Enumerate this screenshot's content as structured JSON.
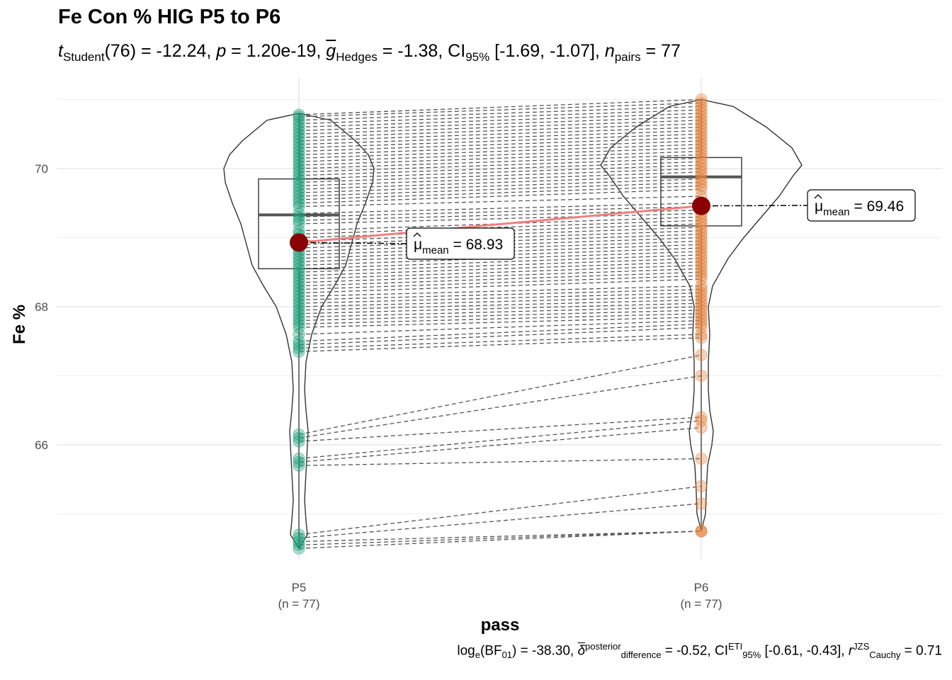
{
  "chart_data": {
    "type": "paired violin-box-scatter",
    "title": "Fe Con % HIG P5 to P6",
    "subtitle": {
      "t_label": "t",
      "t_sub": "Student",
      "df": "(76)",
      "t_value": " = -12.24, ",
      "p_label": "p",
      "p_value": " = 1.20e-19, ",
      "g_label": "g",
      "g_sub": "Hedges",
      "g_value": " = -1.38, CI",
      "ci_sub": "95%",
      "ci_value": " [-1.69, -1.07], ",
      "n_label": "n",
      "n_sub": "pairs",
      "n_value": " = 77"
    },
    "caption": {
      "log_label": "log",
      "log_sub": "e",
      "bf_open": "(BF",
      "bf_sub": "01",
      "bf_value": ") = -38.30, ",
      "delta_label": "δ",
      "delta_sup": "posterior",
      "delta_sub": "difference",
      "delta_value": " = -0.52, CI",
      "ci_sup": "ETI",
      "ci_sub": "95%",
      "ci_value": " [-0.61, -0.43], ",
      "r_label": "r",
      "r_sup": "JZS",
      "r_sub": "Cauchy",
      "r_value": " = 0.71"
    },
    "xlabel": "pass",
    "ylabel": "Fe %",
    "ylim": [
      64.3,
      71.2
    ],
    "y_ticks": [
      "66",
      "68",
      "70"
    ],
    "grid": true,
    "groups": [
      {
        "name": "P5",
        "n_label": "(n = 77)",
        "color": "#1b9e77",
        "mean": 68.93,
        "mean_label": "68.93",
        "box": {
          "q1": 68.55,
          "median": 69.33,
          "q3": 69.85,
          "whisker_low": 64.5,
          "whisker_high": 70.8
        }
      },
      {
        "name": "P6",
        "n_label": "(n = 77)",
        "color": "#e6813d",
        "mean": 69.46,
        "mean_label": "69.46",
        "box": {
          "q1": 69.17,
          "median": 69.88,
          "q3": 70.16,
          "whisker_low": 64.75,
          "whisker_high": 71.0
        }
      }
    ],
    "mean_label_prefix": "μ",
    "mean_label_sub": "mean",
    "mean_color": "#8b0000",
    "mean_line_color": "#f08080",
    "pairs": [
      [
        70.78,
        71.0
      ],
      [
        70.75,
        70.95
      ],
      [
        70.7,
        70.9
      ],
      [
        70.65,
        70.85
      ],
      [
        70.6,
        70.8
      ],
      [
        70.55,
        70.75
      ],
      [
        70.5,
        70.7
      ],
      [
        70.45,
        70.65
      ],
      [
        70.4,
        70.6
      ],
      [
        70.35,
        70.55
      ],
      [
        70.3,
        70.5
      ],
      [
        70.25,
        70.45
      ],
      [
        70.2,
        70.4
      ],
      [
        70.15,
        70.35
      ],
      [
        70.1,
        70.3
      ],
      [
        70.05,
        70.25
      ],
      [
        70.0,
        70.2
      ],
      [
        69.95,
        70.15
      ],
      [
        69.9,
        70.1
      ],
      [
        69.85,
        70.05
      ],
      [
        69.8,
        70.0
      ],
      [
        69.75,
        69.95
      ],
      [
        69.7,
        69.9
      ],
      [
        69.65,
        69.85
      ],
      [
        69.6,
        69.8
      ],
      [
        69.55,
        69.75
      ],
      [
        69.5,
        69.7
      ],
      [
        69.45,
        69.6
      ],
      [
        69.35,
        69.5
      ],
      [
        69.3,
        69.45
      ],
      [
        69.25,
        69.4
      ],
      [
        69.2,
        69.35
      ],
      [
        69.1,
        69.3
      ],
      [
        69.05,
        69.25
      ],
      [
        69.0,
        69.2
      ],
      [
        68.95,
        69.15
      ],
      [
        68.9,
        69.1
      ],
      [
        68.85,
        69.05
      ],
      [
        68.8,
        69.0
      ],
      [
        68.75,
        68.95
      ],
      [
        68.7,
        68.9
      ],
      [
        68.65,
        68.85
      ],
      [
        68.6,
        68.8
      ],
      [
        68.55,
        68.75
      ],
      [
        68.5,
        68.7
      ],
      [
        68.45,
        68.65
      ],
      [
        68.4,
        68.6
      ],
      [
        68.35,
        68.55
      ],
      [
        68.3,
        68.5
      ],
      [
        68.25,
        68.45
      ],
      [
        68.2,
        68.4
      ],
      [
        68.15,
        68.3
      ],
      [
        68.1,
        68.25
      ],
      [
        68.05,
        68.2
      ],
      [
        68.0,
        68.15
      ],
      [
        67.95,
        68.1
      ],
      [
        67.9,
        68.05
      ],
      [
        67.85,
        68.0
      ],
      [
        67.8,
        67.95
      ],
      [
        67.75,
        67.9
      ],
      [
        67.7,
        67.85
      ],
      [
        67.6,
        67.8
      ],
      [
        67.5,
        67.75
      ],
      [
        67.45,
        67.7
      ],
      [
        67.4,
        67.6
      ],
      [
        67.35,
        67.55
      ],
      [
        66.15,
        67.3
      ],
      [
        66.1,
        67.0
      ],
      [
        66.05,
        66.4
      ],
      [
        65.8,
        66.35
      ],
      [
        65.75,
        66.25
      ],
      [
        65.7,
        65.8
      ],
      [
        64.7,
        65.4
      ],
      [
        64.65,
        65.15
      ],
      [
        64.6,
        64.75
      ],
      [
        64.55,
        64.75
      ],
      [
        64.5,
        64.75
      ]
    ]
  }
}
